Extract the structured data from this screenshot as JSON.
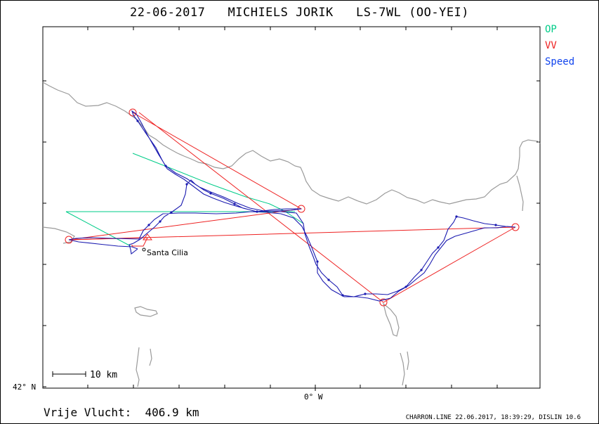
{
  "title": "22-06-2017   MICHIELS JORIK   LS-7WL (OO-YEI)",
  "legend": {
    "items": [
      {
        "label": "OP",
        "color": "#00cc88"
      },
      {
        "label": "VV",
        "color": "#ee2222"
      },
      {
        "label": "Speed",
        "color": "#1144ee"
      }
    ]
  },
  "map": {
    "place_label": "Santa Cilia",
    "scale_label": "10 km",
    "lat_label": "42° N",
    "lon_label": "0° W",
    "track_color": "#1a1ab0",
    "coast_color": "#9a9a9a",
    "op_color": "#00cc88",
    "vv_color": "#ee2222"
  },
  "footer": {
    "distance_text": "Vrije Vlucht:  406.9 km",
    "credit_text": "CHARRON.LINE 22.06.2017, 18:39:29, DISLIN 10.6"
  }
}
